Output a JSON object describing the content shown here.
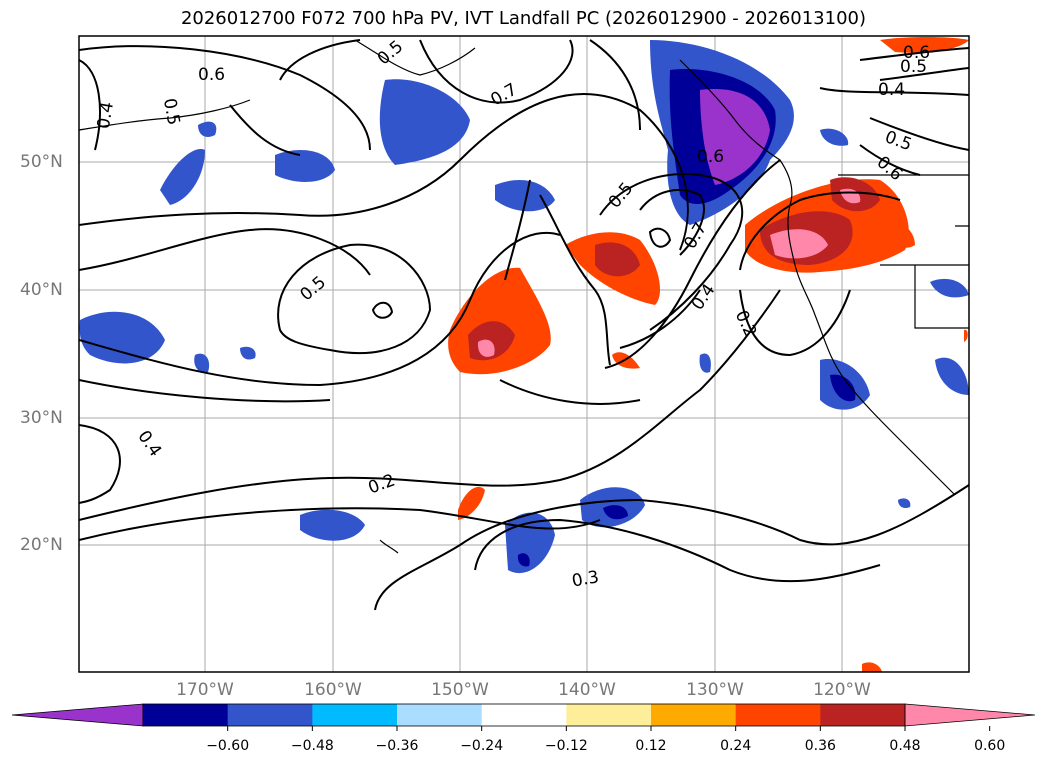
{
  "title": "2026012700 F072 700 hPa PV, IVT Landfall PC (2026012900 - 2026013100)",
  "lat_labels": [
    "50°N",
    "40°N",
    "30°N",
    "20°N"
  ],
  "lon_labels": [
    "170°W",
    "160°W",
    "150°W",
    "140°W",
    "130°W",
    "120°W"
  ],
  "contour_labels": [
    "0.6",
    "0.4",
    "0.5",
    "0.7",
    "0.5",
    "0.6",
    "0.5",
    "0.4",
    "0.5",
    "0.6",
    "0.6",
    "0.7",
    "0.5",
    "0.4",
    "0.2",
    "0.5",
    "0.4",
    "0.2",
    "0.3"
  ],
  "colorbar": {
    "ticks": [
      "−0.60",
      "−0.48",
      "−0.36",
      "−0.24",
      "−0.12",
      "0.12",
      "0.24",
      "0.36",
      "0.48",
      "0.60"
    ],
    "colors": [
      "#9933cc",
      "#000099",
      "#3355cc",
      "#00bbff",
      "#aaddff",
      "#ffffff",
      "#ffee99",
      "#ffaa00",
      "#ff4400",
      "#bb2222",
      "#ff88aa"
    ]
  }
}
